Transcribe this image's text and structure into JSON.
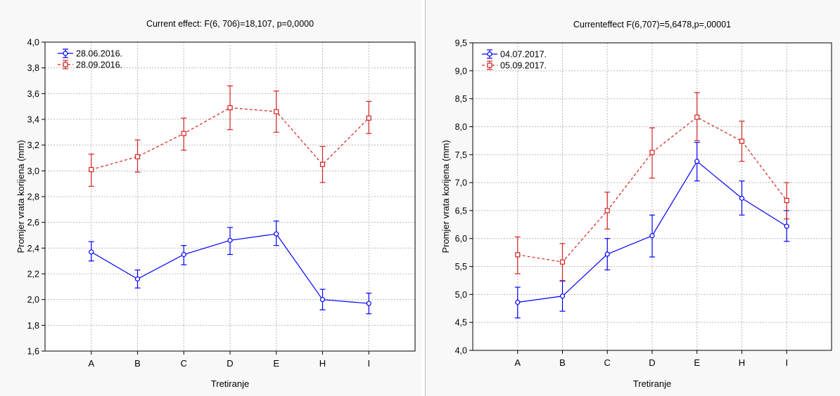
{
  "chart_data": [
    {
      "type": "line",
      "title": "Current effect: F(6, 706)=18,107, p=0,0000",
      "xlabel": "Tretiranje",
      "ylabel": "Promjer vrata korijena (mm)",
      "categories": [
        "A",
        "B",
        "C",
        "D",
        "E",
        "H",
        "I"
      ],
      "ylim": [
        1.6,
        4.0
      ],
      "yticks": [
        "1,6",
        "1,8",
        "2,0",
        "2,2",
        "2,4",
        "2,6",
        "2,8",
        "3,0",
        "3,2",
        "3,4",
        "3,6",
        "3,8",
        "4,0"
      ],
      "yticks_values": [
        1.6,
        1.8,
        2.0,
        2.2,
        2.4,
        2.6,
        2.8,
        3.0,
        3.2,
        3.4,
        3.6,
        3.8,
        4.0
      ],
      "grid": true,
      "legend": "top-left",
      "series": [
        {
          "name": "28.06.2016.",
          "color": "#0000ff",
          "dash": "solid",
          "marker": "circle",
          "values": [
            2.37,
            2.16,
            2.35,
            2.46,
            2.51,
            2.0,
            1.97
          ],
          "ci_low": [
            2.3,
            2.09,
            2.27,
            2.35,
            2.42,
            1.92,
            1.89
          ],
          "ci_high": [
            2.45,
            2.23,
            2.42,
            2.56,
            2.61,
            2.08,
            2.05
          ]
        },
        {
          "name": "28.09.2016.",
          "color": "#d42020",
          "dash": "dashed",
          "marker": "square",
          "values": [
            3.01,
            3.11,
            3.29,
            3.49,
            3.46,
            3.05,
            3.41
          ],
          "ci_low": [
            2.88,
            2.99,
            3.16,
            3.32,
            3.3,
            2.91,
            3.29
          ],
          "ci_high": [
            3.13,
            3.24,
            3.41,
            3.66,
            3.62,
            3.19,
            3.54
          ]
        }
      ]
    },
    {
      "type": "line",
      "title": "Currenteffect F(6,707)=5,6478,p=,00001",
      "xlabel": "Tretiranje",
      "ylabel": "Promjer vrata korijena (mm)",
      "categories": [
        "A",
        "B",
        "C",
        "D",
        "E",
        "H",
        "I"
      ],
      "ylim": [
        4.0,
        9.5
      ],
      "yticks": [
        "4,0",
        "4,5",
        "5,0",
        "5,5",
        "6,0",
        "6,5",
        "7,0",
        "7,5",
        "8,0",
        "8,5",
        "9,0",
        "9,5"
      ],
      "yticks_values": [
        4.0,
        4.5,
        5.0,
        5.5,
        6.0,
        6.5,
        7.0,
        7.5,
        8.0,
        8.5,
        9.0,
        9.5
      ],
      "grid": true,
      "legend": "top-left",
      "series": [
        {
          "name": "04.07.2017.",
          "color": "#0000ff",
          "dash": "solid",
          "marker": "circle",
          "values": [
            4.86,
            4.97,
            5.72,
            6.05,
            7.38,
            6.72,
            6.22
          ],
          "ci_low": [
            4.58,
            4.7,
            5.44,
            5.67,
            7.03,
            6.42,
            5.95
          ],
          "ci_high": [
            5.13,
            5.24,
            6.0,
            6.42,
            7.72,
            7.03,
            6.5
          ]
        },
        {
          "name": "05.09.2017.",
          "color": "#d42020",
          "dash": "dashed",
          "marker": "square",
          "values": [
            5.71,
            5.58,
            6.5,
            7.54,
            8.17,
            7.74,
            6.68
          ],
          "ci_low": [
            5.37,
            5.25,
            6.17,
            7.08,
            7.75,
            7.38,
            6.35
          ],
          "ci_high": [
            6.03,
            5.91,
            6.83,
            7.98,
            8.61,
            8.1,
            7.0
          ]
        }
      ]
    }
  ]
}
